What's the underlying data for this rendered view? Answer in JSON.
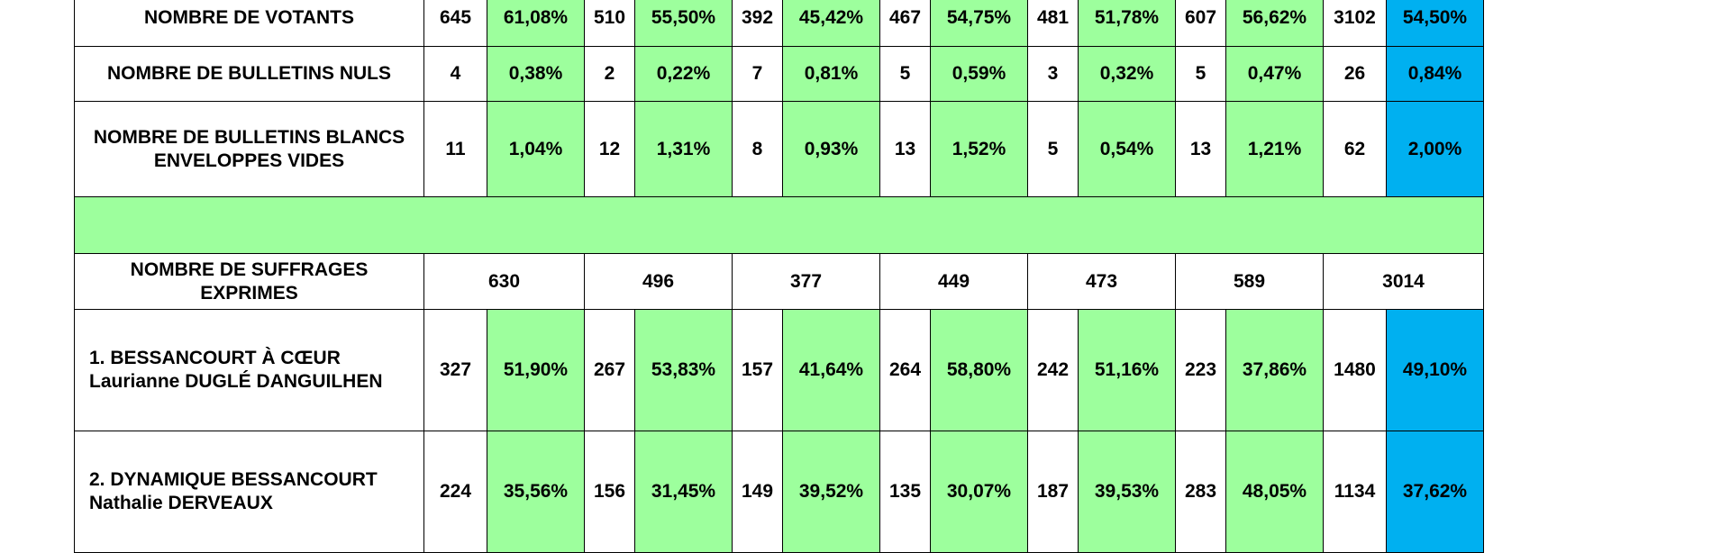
{
  "rows": [
    {
      "label": [
        "NOMBRE DE VOTANTS"
      ],
      "cells": [
        "645",
        "61,08%",
        "510",
        "55,50%",
        "392",
        "45,42%",
        "467",
        "54,75%",
        "481",
        "51,78%",
        "607",
        "56,62%",
        "3102",
        "54,50%"
      ]
    },
    {
      "label": [
        "NOMBRE DE BULLETINS NULS"
      ],
      "cells": [
        "4",
        "0,38%",
        "2",
        "0,22%",
        "7",
        "0,81%",
        "5",
        "0,59%",
        "3",
        "0,32%",
        "5",
        "0,47%",
        "26",
        "0,84%"
      ]
    },
    {
      "label": [
        "NOMBRE DE BULLETINS BLANCS",
        "ENVELOPPES VIDES"
      ],
      "cells": [
        "11",
        "1,04%",
        "12",
        "1,31%",
        "8",
        "0,93%",
        "13",
        "1,52%",
        "5",
        "0,54%",
        "13",
        "1,21%",
        "62",
        "2,00%"
      ]
    },
    {
      "label": [
        "NOMBRE DE SUFFRAGES",
        "EXPRIMES"
      ],
      "cells": [
        "630",
        "496",
        "377",
        "449",
        "473",
        "589",
        "3014"
      ]
    },
    {
      "label": [
        "1. BESSANCOURT À CŒUR",
        "Laurianne DUGLÉ DANGUILHEN"
      ],
      "cells": [
        "327",
        "51,90%",
        "267",
        "53,83%",
        "157",
        "41,64%",
        "264",
        "58,80%",
        "242",
        "51,16%",
        "223",
        "37,86%",
        "1480",
        "49,10%"
      ]
    },
    {
      "label": [
        "2. DYNAMIQUE BESSANCOURT",
        "Nathalie DERVEAUX"
      ],
      "cells": [
        "224",
        "35,56%",
        "156",
        "31,45%",
        "149",
        "39,52%",
        "135",
        "30,07%",
        "187",
        "39,53%",
        "283",
        "48,05%",
        "1134",
        "37,62%"
      ]
    }
  ]
}
